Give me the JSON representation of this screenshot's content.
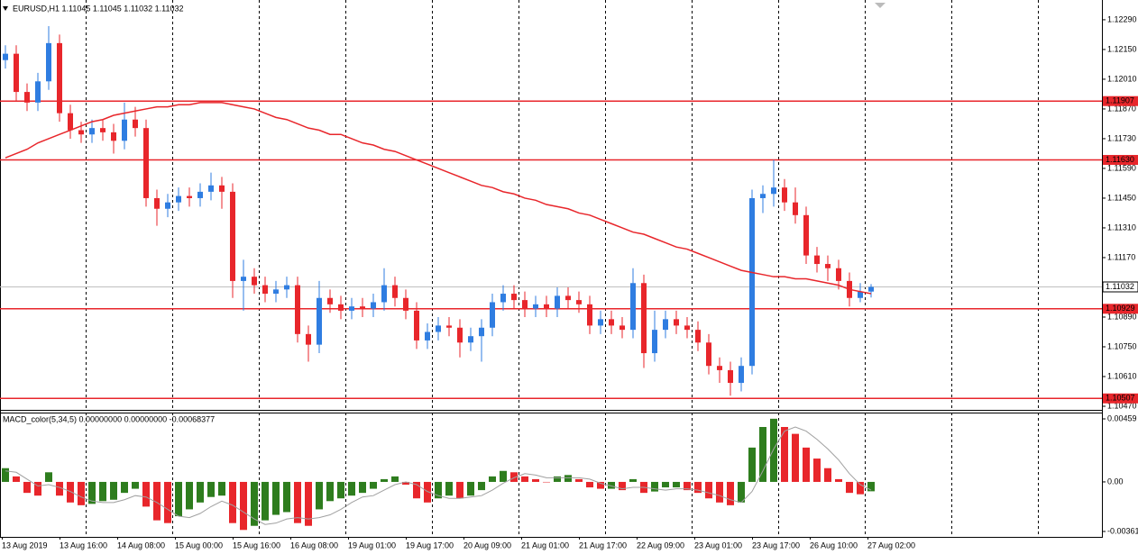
{
  "chart_data": {
    "type": "candlestick",
    "title": "EURUSD,H1  1.11045 1.11045 1.11032 1.11032",
    "up_color": "#2f7de1",
    "down_color": "#e8262b",
    "grid": true,
    "ylim": [
      1.10453,
      1.12383
    ],
    "yticks": [
      {
        "value": 1.1229,
        "label": "1.12290"
      },
      {
        "value": 1.1215,
        "label": "1.12150"
      },
      {
        "value": 1.1201,
        "label": "1.12010"
      },
      {
        "value": 1.1187,
        "label": "1.11870"
      },
      {
        "value": 1.1173,
        "label": "1.11730"
      },
      {
        "value": 1.1159,
        "label": "1.11590"
      },
      {
        "value": 1.1145,
        "label": "1.11450"
      },
      {
        "value": 1.1131,
        "label": "1.11310"
      },
      {
        "value": 1.1117,
        "label": "1.11170"
      },
      {
        "value": 1.1089,
        "label": "1.10890"
      },
      {
        "value": 1.1075,
        "label": "1.10750"
      },
      {
        "value": 1.1061,
        "label": "1.10610"
      },
      {
        "value": 1.1047,
        "label": "1.10470"
      }
    ],
    "hlines": [
      {
        "value": 1.11907,
        "label": "1.11907"
      },
      {
        "value": 1.1163,
        "label": "1.11630"
      },
      {
        "value": 1.10929,
        "label": "1.10929"
      },
      {
        "value": 1.10507,
        "label": "1.10507"
      }
    ],
    "hline_color": "#e8262b",
    "current_price": 1.11032,
    "x_labels": [
      "13 Aug 2019",
      "13 Aug 16:00",
      "14 Aug 08:00",
      "15 Aug 00:00",
      "15 Aug 16:00",
      "16 Aug 08:00",
      "19 Aug 01:00",
      "19 Aug 17:00",
      "20 Aug 09:00",
      "21 Aug 01:00",
      "21 Aug 17:00",
      "22 Aug 09:00",
      "23 Aug 01:00",
      "23 Aug 17:00",
      "26 Aug 10:00",
      "27 Aug 02:00"
    ],
    "open": [
      1.121,
      1.1213,
      1.1195,
      1.119,
      1.12,
      1.1218,
      1.1185,
      1.1177,
      1.1175,
      1.1178,
      1.1176,
      1.1172,
      1.1182,
      1.1178,
      1.1145,
      1.114,
      1.1143,
      1.1146,
      1.1145,
      1.1148,
      1.1151,
      1.1148,
      1.1106,
      1.1108,
      1.1104,
      1.11,
      1.1102,
      1.1104,
      1.1081,
      1.1076,
      1.1098,
      1.1095,
      1.1092,
      1.1094,
      1.1093,
      1.1096,
      1.1104,
      1.1098,
      1.1092,
      1.1078,
      1.1082,
      1.1085,
      1.1084,
      1.1077,
      1.108,
      1.1084,
      1.1096,
      1.11,
      1.1097,
      1.1093,
      1.1095,
      1.1093,
      1.1099,
      1.1097,
      1.1095,
      1.1085,
      1.1088,
      1.1085,
      1.1083,
      1.1105,
      1.1072,
      1.1083,
      1.1088,
      1.1085,
      1.1083,
      1.1077,
      1.1066,
      1.1064,
      1.1058,
      1.1066,
      1.1145,
      1.1147,
      1.115,
      1.1143,
      1.1137,
      1.1118,
      1.1114,
      1.1112,
      1.1106,
      1.1098,
      1.1101
    ],
    "high": [
      1.1217,
      1.1217,
      1.1199,
      1.1204,
      1.1226,
      1.1222,
      1.1189,
      1.1181,
      1.1182,
      1.1182,
      1.118,
      1.119,
      1.1188,
      1.1182,
      1.1149,
      1.1147,
      1.115,
      1.115,
      1.1152,
      1.1157,
      1.1155,
      1.1152,
      1.1116,
      1.1112,
      1.1108,
      1.1106,
      1.1108,
      1.1108,
      1.1085,
      1.1106,
      1.1102,
      1.1099,
      1.1098,
      1.1098,
      1.11,
      1.1112,
      1.1108,
      1.1102,
      1.1096,
      1.1086,
      1.1089,
      1.1089,
      1.1088,
      1.1084,
      1.1088,
      1.11,
      1.1104,
      1.1104,
      1.1101,
      1.1099,
      1.1099,
      1.1103,
      1.1103,
      1.1101,
      1.1099,
      1.1092,
      1.1092,
      1.1089,
      1.1112,
      1.1109,
      1.1092,
      1.1092,
      1.1092,
      1.1089,
      1.1087,
      1.1081,
      1.107,
      1.1068,
      1.107,
      1.1149,
      1.1151,
      1.1163,
      1.1154,
      1.115,
      1.1141,
      1.1122,
      1.1118,
      1.1116,
      1.111,
      1.1105,
      1.11045
    ],
    "low": [
      1.1206,
      1.1191,
      1.1186,
      1.1186,
      1.1196,
      1.1181,
      1.1173,
      1.1171,
      1.1171,
      1.1172,
      1.1166,
      1.1168,
      1.1174,
      1.1141,
      1.1132,
      1.1136,
      1.1139,
      1.1141,
      1.1141,
      1.1144,
      1.114,
      1.1098,
      1.1092,
      1.11,
      1.1096,
      1.1096,
      1.1098,
      1.1077,
      1.1068,
      1.1072,
      1.1091,
      1.1088,
      1.1088,
      1.1089,
      1.1089,
      1.1092,
      1.1094,
      1.1088,
      1.1074,
      1.1074,
      1.1078,
      1.108,
      1.107,
      1.1073,
      1.1068,
      1.108,
      1.1092,
      1.1093,
      1.1089,
      1.1089,
      1.1089,
      1.1089,
      1.1093,
      1.1091,
      1.1081,
      1.1081,
      1.1081,
      1.1079,
      1.1079,
      1.1065,
      1.1068,
      1.1079,
      1.1081,
      1.1079,
      1.1073,
      1.1062,
      1.1058,
      1.1052,
      1.1054,
      1.1062,
      1.1138,
      1.1141,
      1.1139,
      1.1133,
      1.1114,
      1.111,
      1.1106,
      1.1102,
      1.1094,
      1.1096,
      1.10982
    ],
    "close": [
      1.1213,
      1.1195,
      1.119,
      1.12,
      1.1218,
      1.1185,
      1.1177,
      1.1175,
      1.1178,
      1.1176,
      1.1172,
      1.1182,
      1.1178,
      1.1145,
      1.114,
      1.1143,
      1.1146,
      1.1145,
      1.1148,
      1.1151,
      1.1148,
      1.1106,
      1.1108,
      1.1104,
      1.11,
      1.1102,
      1.1104,
      1.1081,
      1.1076,
      1.1098,
      1.1095,
      1.1092,
      1.1094,
      1.1093,
      1.1096,
      1.1104,
      1.1098,
      1.1092,
      1.1078,
      1.1082,
      1.1085,
      1.1084,
      1.1077,
      1.108,
      1.1084,
      1.1096,
      1.11,
      1.1097,
      1.1093,
      1.1095,
      1.1093,
      1.1099,
      1.1097,
      1.1095,
      1.1085,
      1.1088,
      1.1085,
      1.1083,
      1.1105,
      1.1072,
      1.1083,
      1.1088,
      1.1085,
      1.1083,
      1.1077,
      1.1066,
      1.1064,
      1.1058,
      1.1066,
      1.1145,
      1.1147,
      1.115,
      1.1143,
      1.1137,
      1.1118,
      1.1114,
      1.1112,
      1.1106,
      1.1098,
      1.1101,
      1.11032
    ],
    "ma": {
      "color": "#e8262b",
      "values": [
        1.1164,
        1.1166,
        1.1168,
        1.1171,
        1.1173,
        1.1175,
        1.1177,
        1.1179,
        1.1181,
        1.1182,
        1.1184,
        1.1185,
        1.1186,
        1.1187,
        1.1188,
        1.1188,
        1.1189,
        1.1189,
        1.119,
        1.119,
        1.119,
        1.1189,
        1.1188,
        1.1187,
        1.1185,
        1.1183,
        1.1182,
        1.118,
        1.1178,
        1.1177,
        1.1175,
        1.1175,
        1.1173,
        1.1171,
        1.117,
        1.1168,
        1.1167,
        1.1165,
        1.1163,
        1.1161,
        1.1159,
        1.1157,
        1.1155,
        1.1153,
        1.1151,
        1.115,
        1.1148,
        1.1147,
        1.1145,
        1.1144,
        1.1142,
        1.1141,
        1.114,
        1.1138,
        1.1137,
        1.1135,
        1.1133,
        1.1131,
        1.1129,
        1.1128,
        1.1126,
        1.1124,
        1.1122,
        1.1121,
        1.1119,
        1.1117,
        1.1115,
        1.1113,
        1.1111,
        1.111,
        1.1109,
        1.1108,
        1.1108,
        1.1107,
        1.1107,
        1.1106,
        1.1105,
        1.1104,
        1.1102,
        1.1101,
        1.11
      ]
    },
    "macd": {
      "title": "MACD_color(5,34,5) 0.00000000 0.00000000 -0.00068377",
      "ylim": [
        -0.00394,
        0.00505
      ],
      "yticks": [
        {
          "value": 0.00459,
          "label": "0.00459"
        },
        {
          "value": 0,
          "label": "0.00"
        },
        {
          "value": -0.00361,
          "label": "-0.00361"
        }
      ],
      "up_color": "#2e7d1e",
      "down_color": "#e8262b",
      "signal_color": "#a0a0a0",
      "values": [
        0.001,
        0.0004,
        -0.0008,
        -0.001,
        0.0007,
        -0.001,
        -0.0015,
        -0.0017,
        -0.0016,
        -0.0014,
        -0.0013,
        -0.0008,
        -0.0005,
        -0.0018,
        -0.0028,
        -0.003,
        -0.0025,
        -0.002,
        -0.0015,
        -0.0011,
        -0.001,
        -0.003,
        -0.0035,
        -0.0032,
        -0.0028,
        -0.0024,
        -0.0022,
        -0.003,
        -0.0032,
        -0.002,
        -0.0014,
        -0.0012,
        -0.001,
        -0.0008,
        -0.0005,
        0.0002,
        0.0004,
        -0.0002,
        -0.0012,
        -0.0015,
        -0.0012,
        -0.001,
        -0.0012,
        -0.001,
        -0.0006,
        0.0004,
        0.0008,
        0.0007,
        0.0004,
        0.0002,
        0,
        0.0004,
        0.0005,
        0.0002,
        -0.0004,
        -0.0005,
        -0.0005,
        -0.0006,
        0.0002,
        -0.0008,
        -0.0007,
        -0.0004,
        -0.0004,
        -0.0006,
        -0.0008,
        -0.0012,
        -0.0015,
        -0.0017,
        -0.0015,
        0.0025,
        0.004,
        0.0046,
        0.004,
        0.0035,
        0.0025,
        0.0017,
        0.001,
        0.0002,
        -0.0008,
        -0.0009,
        -0.00068377
      ],
      "signal": [
        0.0008,
        0.0007,
        0.0002,
        -0.0003,
        -0.0002,
        -0.0004,
        -0.0007,
        -0.0011,
        -0.0014,
        -0.0015,
        -0.0015,
        -0.0013,
        -0.001,
        -0.0011,
        -0.0015,
        -0.002,
        -0.0025,
        -0.0026,
        -0.0023,
        -0.0018,
        -0.0014,
        -0.0017,
        -0.0022,
        -0.0027,
        -0.0031,
        -0.003,
        -0.0027,
        -0.0026,
        -0.0027,
        -0.0026,
        -0.0024,
        -0.002,
        -0.0015,
        -0.0011,
        -0.001,
        -0.0006,
        -0.0002,
        0,
        -0.0002,
        -0.0007,
        -0.001,
        -0.0012,
        -0.0012,
        -0.0011,
        -0.001,
        -0.0006,
        -0.0001,
        0.0003,
        0.0006,
        0.0005,
        0.0003,
        0.0003,
        0.0003,
        0.0003,
        0.0002,
        -0.0001,
        -0.0003,
        -0.0005,
        -0.0004,
        -0.0004,
        -0.0005,
        -0.0006,
        -0.0005,
        -0.0005,
        -0.0006,
        -0.0008,
        -0.001,
        -0.0013,
        -0.0015,
        -0.0007,
        0.0008,
        0.0024,
        0.0037,
        0.004,
        0.0037,
        0.0031,
        0.0024,
        0.0016,
        0.0006,
        -0.0002,
        -0.0006
      ]
    }
  }
}
